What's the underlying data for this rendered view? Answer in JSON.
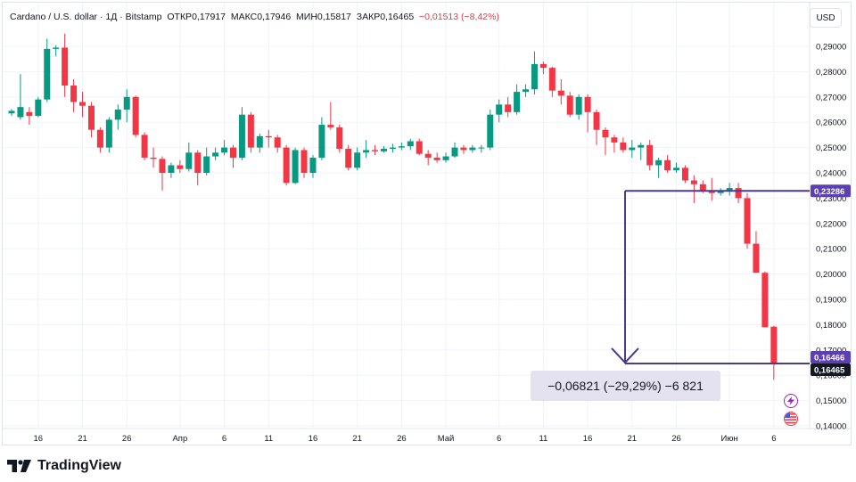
{
  "header": {
    "symbol": "Cardano / U.S. dollar · 1Д · Bitstamp",
    "open_label": "ОТКР",
    "open": "0,17917",
    "high_label": "МАКС",
    "high": "0,17946",
    "low_label": "МИН",
    "low": "0,15817",
    "close_label": "ЗАКР",
    "close": "0,16465",
    "change": "−0,01513 (−8,42%)"
  },
  "currency_button": "USD",
  "measure_label": "−0,06821 (−29,29%) −6 821",
  "brand": "TradingView",
  "colors": {
    "up": "#089981",
    "down": "#f23645",
    "measure": "#4b3a8f",
    "measure_fill": "#e4e2f0"
  },
  "icons": {
    "alert": "lightning-alert-icon",
    "flag": "us-flag-icon"
  },
  "chart_data": {
    "type": "candlestick",
    "y_axis_position": "right",
    "ylim": [
      0.135,
      0.295
    ],
    "y_ticks": [
      0.14,
      0.15,
      0.16,
      0.17,
      0.18,
      0.19,
      0.2,
      0.21,
      0.22,
      0.23,
      0.24,
      0.25,
      0.26,
      0.27,
      0.28,
      0.29
    ],
    "y_tick_labels": [
      "0,14000",
      "0,15000",
      "0,16000",
      "0,17000",
      "0,18000",
      "0,19000",
      "0,20000",
      "0,21000",
      "0,22000",
      "0,23000",
      "0,24000",
      "0,25000",
      "0,26000",
      "0,27000",
      "0,28000",
      "0,29000"
    ],
    "x_tick_labels": [
      {
        "i": 3,
        "label": "16"
      },
      {
        "i": 8,
        "label": "21"
      },
      {
        "i": 13,
        "label": "26"
      },
      {
        "i": 19,
        "label": "Апр"
      },
      {
        "i": 24,
        "label": "6"
      },
      {
        "i": 29,
        "label": "11"
      },
      {
        "i": 34,
        "label": "16"
      },
      {
        "i": 39,
        "label": "21"
      },
      {
        "i": 44,
        "label": "26"
      },
      {
        "i": 49,
        "label": "Май"
      },
      {
        "i": 55,
        "label": "6"
      },
      {
        "i": 60,
        "label": "11"
      },
      {
        "i": 65,
        "label": "16"
      },
      {
        "i": 70,
        "label": "21"
      },
      {
        "i": 75,
        "label": "26"
      },
      {
        "i": 81,
        "label": "Июн"
      },
      {
        "i": 86,
        "label": "6"
      }
    ],
    "candles": [
      [
        0.2635,
        0.2645,
        0.2625,
        0.2652
      ],
      [
        0.262,
        0.266,
        0.261,
        0.279
      ],
      [
        0.264,
        0.2625,
        0.259,
        0.266
      ],
      [
        0.2625,
        0.269,
        0.262,
        0.27
      ],
      [
        0.269,
        0.289,
        0.268,
        0.293
      ],
      [
        0.289,
        0.2895,
        0.286,
        0.2905
      ],
      [
        0.2895,
        0.2745,
        0.27,
        0.295
      ],
      [
        0.2745,
        0.268,
        0.264,
        0.277
      ],
      [
        0.268,
        0.2665,
        0.262,
        0.272
      ],
      [
        0.2665,
        0.257,
        0.254,
        0.268
      ],
      [
        0.257,
        0.25,
        0.248,
        0.258
      ],
      [
        0.25,
        0.261,
        0.248,
        0.262
      ],
      [
        0.261,
        0.265,
        0.257,
        0.267
      ],
      [
        0.265,
        0.27,
        0.26,
        0.273
      ],
      [
        0.27,
        0.255,
        0.254,
        0.2705
      ],
      [
        0.255,
        0.246,
        0.245,
        0.256
      ],
      [
        0.246,
        0.2455,
        0.242,
        0.25
      ],
      [
        0.2455,
        0.24,
        0.233,
        0.2465
      ],
      [
        0.24,
        0.243,
        0.238,
        0.244
      ],
      [
        0.243,
        0.2415,
        0.24,
        0.245
      ],
      [
        0.2415,
        0.248,
        0.2405,
        0.252
      ],
      [
        0.248,
        0.24,
        0.235,
        0.249
      ],
      [
        0.24,
        0.2465,
        0.239,
        0.25
      ],
      [
        0.2465,
        0.248,
        0.245,
        0.25
      ],
      [
        0.248,
        0.25,
        0.247,
        0.253
      ],
      [
        0.25,
        0.246,
        0.242,
        0.251
      ],
      [
        0.246,
        0.263,
        0.245,
        0.266
      ],
      [
        0.263,
        0.25,
        0.248,
        0.264
      ],
      [
        0.25,
        0.2545,
        0.248,
        0.2555
      ],
      [
        0.2545,
        0.254,
        0.25,
        0.257
      ],
      [
        0.254,
        0.25,
        0.248,
        0.255
      ],
      [
        0.25,
        0.236,
        0.235,
        0.251
      ],
      [
        0.236,
        0.249,
        0.2355,
        0.25
      ],
      [
        0.249,
        0.24,
        0.238,
        0.25
      ],
      [
        0.24,
        0.246,
        0.238,
        0.247
      ],
      [
        0.246,
        0.259,
        0.245,
        0.262
      ],
      [
        0.259,
        0.258,
        0.257,
        0.268
      ],
      [
        0.258,
        0.2495,
        0.248,
        0.259
      ],
      [
        0.2495,
        0.242,
        0.241,
        0.251
      ],
      [
        0.242,
        0.248,
        0.241,
        0.25
      ],
      [
        0.248,
        0.249,
        0.246,
        0.253
      ],
      [
        0.249,
        0.2485,
        0.247,
        0.251
      ],
      [
        0.2485,
        0.2495,
        0.248,
        0.2505
      ],
      [
        0.2495,
        0.25,
        0.248,
        0.2515
      ],
      [
        0.25,
        0.2505,
        0.249,
        0.252
      ],
      [
        0.2505,
        0.2525,
        0.249,
        0.2535
      ],
      [
        0.2525,
        0.2475,
        0.247,
        0.2535
      ],
      [
        0.2475,
        0.246,
        0.243,
        0.249
      ],
      [
        0.246,
        0.245,
        0.244,
        0.248
      ],
      [
        0.245,
        0.2465,
        0.244,
        0.248
      ],
      [
        0.2465,
        0.25,
        0.246,
        0.252
      ],
      [
        0.25,
        0.249,
        0.2475,
        0.251
      ],
      [
        0.249,
        0.25,
        0.248,
        0.251
      ],
      [
        0.25,
        0.25,
        0.248,
        0.251
      ],
      [
        0.25,
        0.263,
        0.249,
        0.265
      ],
      [
        0.263,
        0.267,
        0.26,
        0.269
      ],
      [
        0.267,
        0.264,
        0.262,
        0.27
      ],
      [
        0.264,
        0.272,
        0.263,
        0.275
      ],
      [
        0.272,
        0.273,
        0.27,
        0.275
      ],
      [
        0.273,
        0.283,
        0.271,
        0.288
      ],
      [
        0.283,
        0.2815,
        0.279,
        0.284
      ],
      [
        0.2815,
        0.2725,
        0.27,
        0.282
      ],
      [
        0.2725,
        0.2705,
        0.267,
        0.277
      ],
      [
        0.2705,
        0.263,
        0.262,
        0.272
      ],
      [
        0.263,
        0.27,
        0.261,
        0.271
      ],
      [
        0.27,
        0.264,
        0.256,
        0.271
      ],
      [
        0.264,
        0.257,
        0.251,
        0.265
      ],
      [
        0.257,
        0.254,
        0.247,
        0.258
      ],
      [
        0.254,
        0.252,
        0.248,
        0.255
      ],
      [
        0.252,
        0.249,
        0.248,
        0.254
      ],
      [
        0.249,
        0.25,
        0.246,
        0.253
      ],
      [
        0.25,
        0.251,
        0.245,
        0.252
      ],
      [
        0.251,
        0.243,
        0.241,
        0.253
      ],
      [
        0.243,
        0.245,
        0.238,
        0.246
      ],
      [
        0.245,
        0.241,
        0.24,
        0.247
      ],
      [
        0.241,
        0.242,
        0.24,
        0.244
      ],
      [
        0.242,
        0.237,
        0.236,
        0.243
      ],
      [
        0.237,
        0.2355,
        0.228,
        0.239
      ],
      [
        0.2355,
        0.233,
        0.232,
        0.237
      ],
      [
        0.233,
        0.232,
        0.229,
        0.238
      ],
      [
        0.232,
        0.233,
        0.231,
        0.234
      ],
      [
        0.233,
        0.234,
        0.231,
        0.236
      ],
      [
        0.234,
        0.23,
        0.228,
        0.236
      ],
      [
        0.23,
        0.212,
        0.21,
        0.232
      ],
      [
        0.212,
        0.2005,
        0.2005,
        0.217
      ],
      [
        0.2005,
        0.179,
        0.179,
        0.201
      ],
      [
        0.1792,
        0.1646,
        0.1582,
        0.1795
      ]
    ],
    "hlines": [
      {
        "value": 0.23286,
        "label": "0,23286"
      },
      {
        "value": 0.16466,
        "label": "0,16466"
      },
      {
        "value": 0.16465,
        "label": "0,16465"
      }
    ]
  }
}
